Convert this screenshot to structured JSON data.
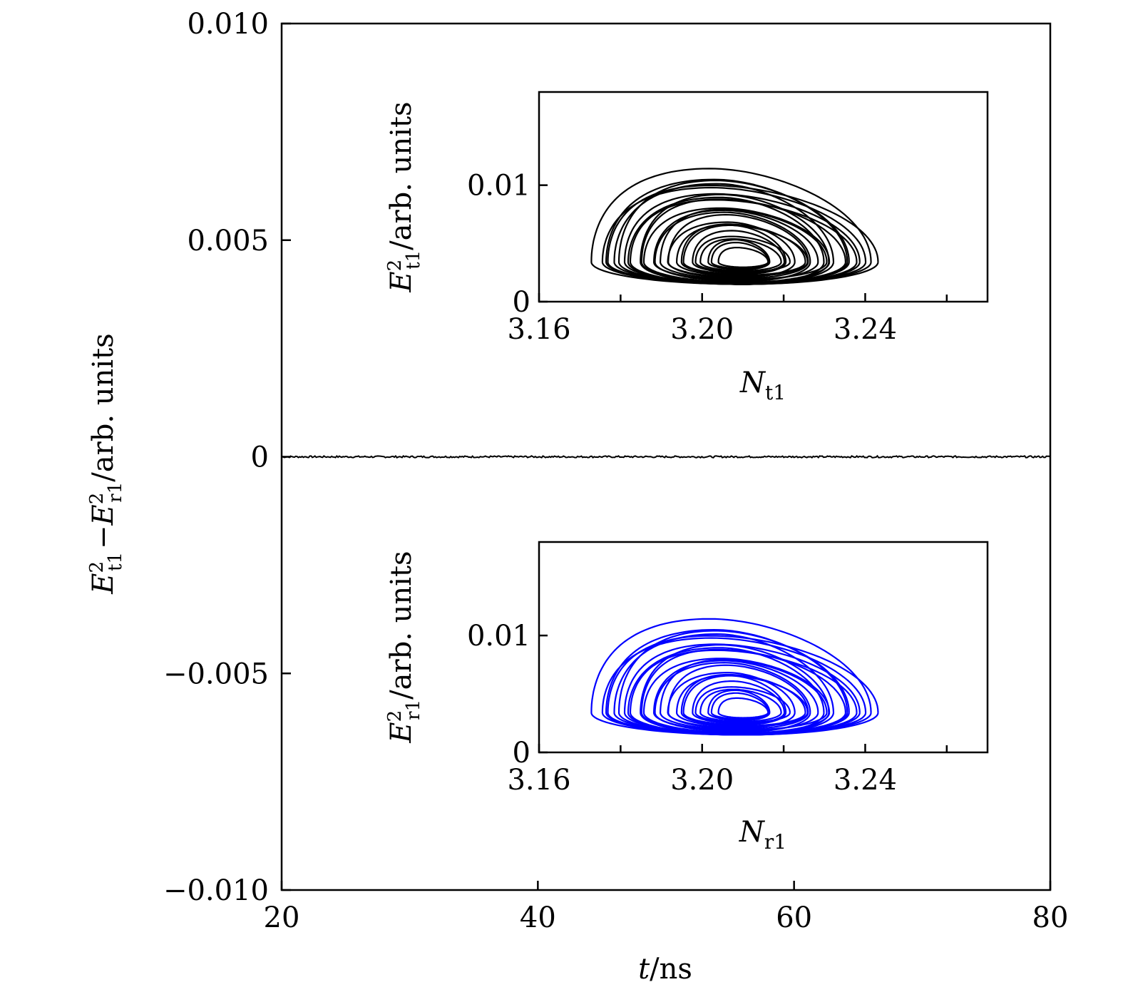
{
  "chart_data": [
    {
      "type": "line",
      "xlabel": {
        "var": "t",
        "unit": "/ns"
      },
      "ylabel": {
        "left": "E",
        "sup1": "2",
        "sub1": "t1",
        "minus": "−",
        "right": "E",
        "sup2": "2",
        "sub2": "r1",
        "unit": "/arb. units"
      },
      "xlim": [
        20,
        80
      ],
      "ylim": [
        -0.01,
        0.01
      ],
      "x_ticks": [
        "20",
        "40",
        "60",
        "80"
      ],
      "x_tick_values": [
        20,
        40,
        60,
        80
      ],
      "y_ticks": [
        "0.010",
        "0.005",
        "0",
        "−0.005",
        "−0.010"
      ],
      "y_tick_values": [
        0.01,
        0.005,
        0,
        -0.005,
        -0.01
      ],
      "series": [
        {
          "x_range": [
            20,
            80
          ],
          "y": 0,
          "noise_amplitude": 2e-05,
          "color": "#000000"
        }
      ]
    },
    {
      "type": "line",
      "inset": "top",
      "xlabel": {
        "var": "N",
        "sub": "t1"
      },
      "ylabel": {
        "var": "E",
        "sup": "2",
        "sub": "t1",
        "unit": "/arb. units"
      },
      "xlim": [
        3.16,
        3.27
      ],
      "ylim": [
        0,
        0.018
      ],
      "x_ticks": [
        "3.16",
        "3.20",
        "3.24"
      ],
      "x_tick_values": [
        3.16,
        3.2,
        3.24
      ],
      "x_minor_tick_values": [
        3.18,
        3.22,
        3.26
      ],
      "y_ticks": [
        "0.01",
        "0"
      ],
      "y_tick_values": [
        0.01,
        0
      ],
      "series": [
        {
          "shape": "attractor",
          "x_extent": [
            3.174,
            3.247
          ],
          "y_extent": [
            0.0015,
            0.0115
          ],
          "center": [
            3.21,
            0.0034
          ],
          "color": "#000000"
        }
      ]
    },
    {
      "type": "line",
      "inset": "bottom",
      "xlabel": {
        "var": "N",
        "sub": "r1"
      },
      "ylabel": {
        "var": "E",
        "sup": "2",
        "sub": "r1",
        "unit": "/arb. units"
      },
      "xlim": [
        3.16,
        3.27
      ],
      "ylim": [
        0,
        0.018
      ],
      "x_ticks": [
        "3.16",
        "3.20",
        "3.24"
      ],
      "x_tick_values": [
        3.16,
        3.2,
        3.24
      ],
      "x_minor_tick_values": [
        3.18,
        3.22,
        3.26
      ],
      "y_ticks": [
        "0.01",
        "0"
      ],
      "y_tick_values": [
        0.01,
        0
      ],
      "series": [
        {
          "shape": "attractor",
          "x_extent": [
            3.174,
            3.247
          ],
          "y_extent": [
            0.0015,
            0.0115
          ],
          "center": [
            3.21,
            0.0034
          ],
          "color": "#0000ff"
        }
      ]
    }
  ]
}
